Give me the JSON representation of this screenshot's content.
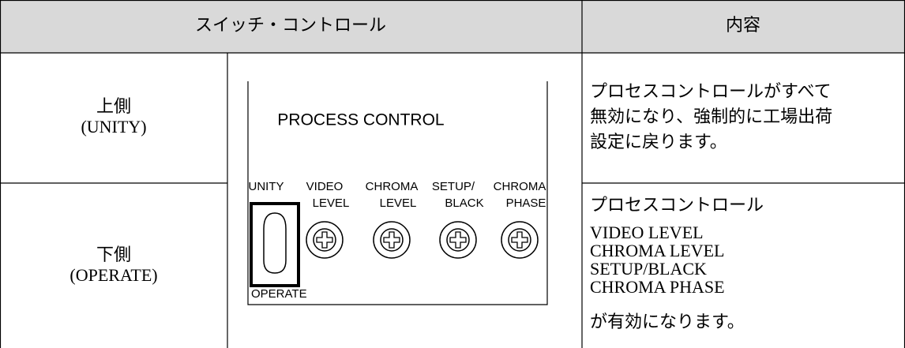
{
  "table": {
    "header": [
      "スイッチ・コントロール",
      "内容"
    ],
    "rows": [
      {
        "position": "上側",
        "mode": "(UNITY)",
        "description": [
          "プロセスコントロールがすべて",
          "無効になり、強制的に工場出荷",
          "設定に戻ります。"
        ]
      },
      {
        "position": "下側",
        "mode": "(OPERATE)",
        "description": [
          "プロセスコントロール",
          "VIDEO LEVEL",
          "CHROMA LEVEL",
          "SETUP/BLACK",
          "CHROMA PHASE",
          "が有効になります。"
        ]
      }
    ]
  },
  "panel": {
    "title": "PROCESS CONTROL",
    "switch_top": "UNITY",
    "switch_bottom": "OPERATE",
    "controls": [
      [
        "VIDEO",
        "LEVEL"
      ],
      [
        "CHROMA",
        "LEVEL"
      ],
      [
        "SETUP/",
        "BLACK"
      ],
      [
        "CHROMA",
        "PHASE"
      ]
    ]
  }
}
